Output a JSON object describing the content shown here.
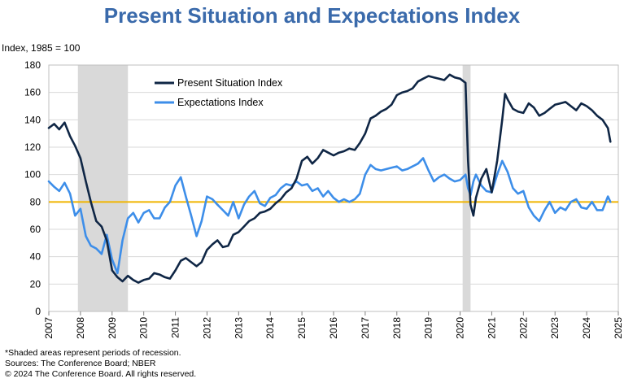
{
  "title": "Present Situation and Expectations Index",
  "unit_label": "Index, 1985 = 100",
  "footnotes": [
    "*Shaded areas represent periods of recession.",
    "Sources: The Conference Board;  NBER",
    "© 2024 The Conference Board. All rights reserved."
  ],
  "colors": {
    "present": "#0f2645",
    "expectations": "#3d8ee9",
    "reference": "#f0b400",
    "recession": "#d9d9d9",
    "title": "#3a6aab"
  },
  "chart_data": {
    "type": "line",
    "title": "Present Situation and Expectations Index",
    "ylabel": "Index, 1985 = 100",
    "xlabel": "",
    "ylim": [
      0,
      180
    ],
    "xlim": [
      2007,
      2025
    ],
    "y_ticks": [
      "0",
      "20",
      "40",
      "60",
      "80",
      "100",
      "120",
      "140",
      "160",
      "180"
    ],
    "x_ticks": [
      "2007",
      "2008",
      "2009",
      "2010",
      "2011",
      "2012",
      "2013",
      "2014",
      "2015",
      "2016",
      "2017",
      "2018",
      "2019",
      "2020",
      "2021",
      "2022",
      "2023",
      "2024",
      "2025"
    ],
    "grid": true,
    "legend": "top-left",
    "recessions": [
      [
        2007.92,
        2009.5
      ],
      [
        2020.08,
        2020.33
      ]
    ],
    "reference_line": 80,
    "series": [
      {
        "name": "Present Situation Index",
        "points": [
          [
            2007.0,
            134
          ],
          [
            2007.17,
            137
          ],
          [
            2007.33,
            133
          ],
          [
            2007.5,
            138
          ],
          [
            2007.67,
            128
          ],
          [
            2007.83,
            121
          ],
          [
            2008.0,
            112
          ],
          [
            2008.17,
            95
          ],
          [
            2008.33,
            80
          ],
          [
            2008.5,
            66
          ],
          [
            2008.67,
            62
          ],
          [
            2008.83,
            52
          ],
          [
            2009.0,
            30
          ],
          [
            2009.17,
            25
          ],
          [
            2009.33,
            22
          ],
          [
            2009.5,
            26
          ],
          [
            2009.67,
            23
          ],
          [
            2009.83,
            21
          ],
          [
            2010.0,
            23
          ],
          [
            2010.17,
            24
          ],
          [
            2010.33,
            28
          ],
          [
            2010.5,
            27
          ],
          [
            2010.67,
            25
          ],
          [
            2010.83,
            24
          ],
          [
            2011.0,
            30
          ],
          [
            2011.17,
            37
          ],
          [
            2011.33,
            39
          ],
          [
            2011.5,
            36
          ],
          [
            2011.67,
            33
          ],
          [
            2011.83,
            36
          ],
          [
            2012.0,
            45
          ],
          [
            2012.17,
            49
          ],
          [
            2012.33,
            52
          ],
          [
            2012.5,
            47
          ],
          [
            2012.67,
            48
          ],
          [
            2012.83,
            56
          ],
          [
            2013.0,
            58
          ],
          [
            2013.17,
            62
          ],
          [
            2013.33,
            66
          ],
          [
            2013.5,
            68
          ],
          [
            2013.67,
            72
          ],
          [
            2013.83,
            73
          ],
          [
            2014.0,
            75
          ],
          [
            2014.17,
            79
          ],
          [
            2014.33,
            82
          ],
          [
            2014.5,
            87
          ],
          [
            2014.67,
            90
          ],
          [
            2014.83,
            97
          ],
          [
            2015.0,
            110
          ],
          [
            2015.17,
            113
          ],
          [
            2015.33,
            108
          ],
          [
            2015.5,
            112
          ],
          [
            2015.67,
            118
          ],
          [
            2015.83,
            116
          ],
          [
            2016.0,
            114
          ],
          [
            2016.17,
            116
          ],
          [
            2016.33,
            117
          ],
          [
            2016.5,
            119
          ],
          [
            2016.67,
            118
          ],
          [
            2016.83,
            123
          ],
          [
            2017.0,
            130
          ],
          [
            2017.17,
            141
          ],
          [
            2017.33,
            143
          ],
          [
            2017.5,
            146
          ],
          [
            2017.67,
            148
          ],
          [
            2017.83,
            151
          ],
          [
            2018.0,
            158
          ],
          [
            2018.17,
            160
          ],
          [
            2018.33,
            161
          ],
          [
            2018.5,
            163
          ],
          [
            2018.67,
            168
          ],
          [
            2018.83,
            170
          ],
          [
            2019.0,
            172
          ],
          [
            2019.17,
            171
          ],
          [
            2019.33,
            170
          ],
          [
            2019.5,
            169
          ],
          [
            2019.67,
            173
          ],
          [
            2019.83,
            171
          ],
          [
            2020.0,
            170
          ],
          [
            2020.17,
            167
          ],
          [
            2020.25,
            110
          ],
          [
            2020.33,
            78
          ],
          [
            2020.42,
            70
          ],
          [
            2020.5,
            83
          ],
          [
            2020.67,
            97
          ],
          [
            2020.83,
            104
          ],
          [
            2021.0,
            87
          ],
          [
            2021.17,
            110
          ],
          [
            2021.33,
            140
          ],
          [
            2021.42,
            159
          ],
          [
            2021.5,
            155
          ],
          [
            2021.67,
            148
          ],
          [
            2021.83,
            146
          ],
          [
            2022.0,
            145
          ],
          [
            2022.17,
            152
          ],
          [
            2022.33,
            149
          ],
          [
            2022.5,
            143
          ],
          [
            2022.67,
            145
          ],
          [
            2022.83,
            148
          ],
          [
            2023.0,
            151
          ],
          [
            2023.17,
            152
          ],
          [
            2023.33,
            153
          ],
          [
            2023.5,
            150
          ],
          [
            2023.67,
            147
          ],
          [
            2023.83,
            152
          ],
          [
            2024.0,
            150
          ],
          [
            2024.17,
            147
          ],
          [
            2024.33,
            143
          ],
          [
            2024.5,
            140
          ],
          [
            2024.67,
            134
          ],
          [
            2024.75,
            124
          ]
        ]
      },
      {
        "name": "Expectations Index",
        "points": [
          [
            2007.0,
            95
          ],
          [
            2007.17,
            91
          ],
          [
            2007.33,
            88
          ],
          [
            2007.5,
            94
          ],
          [
            2007.67,
            86
          ],
          [
            2007.83,
            70
          ],
          [
            2008.0,
            75
          ],
          [
            2008.17,
            55
          ],
          [
            2008.33,
            48
          ],
          [
            2008.5,
            46
          ],
          [
            2008.67,
            42
          ],
          [
            2008.83,
            56
          ],
          [
            2009.0,
            38
          ],
          [
            2009.17,
            28
          ],
          [
            2009.33,
            52
          ],
          [
            2009.5,
            68
          ],
          [
            2009.67,
            72
          ],
          [
            2009.83,
            65
          ],
          [
            2010.0,
            72
          ],
          [
            2010.17,
            74
          ],
          [
            2010.33,
            68
          ],
          [
            2010.5,
            68
          ],
          [
            2010.67,
            76
          ],
          [
            2010.83,
            80
          ],
          [
            2011.0,
            92
          ],
          [
            2011.17,
            98
          ],
          [
            2011.33,
            84
          ],
          [
            2011.5,
            70
          ],
          [
            2011.67,
            55
          ],
          [
            2011.83,
            66
          ],
          [
            2012.0,
            84
          ],
          [
            2012.17,
            82
          ],
          [
            2012.33,
            78
          ],
          [
            2012.5,
            74
          ],
          [
            2012.67,
            70
          ],
          [
            2012.83,
            80
          ],
          [
            2013.0,
            68
          ],
          [
            2013.17,
            78
          ],
          [
            2013.33,
            84
          ],
          [
            2013.5,
            88
          ],
          [
            2013.67,
            79
          ],
          [
            2013.83,
            77
          ],
          [
            2014.0,
            83
          ],
          [
            2014.17,
            85
          ],
          [
            2014.33,
            90
          ],
          [
            2014.5,
            93
          ],
          [
            2014.67,
            92
          ],
          [
            2014.83,
            95
          ],
          [
            2015.0,
            92
          ],
          [
            2015.17,
            93
          ],
          [
            2015.33,
            88
          ],
          [
            2015.5,
            90
          ],
          [
            2015.67,
            84
          ],
          [
            2015.83,
            88
          ],
          [
            2016.0,
            83
          ],
          [
            2016.17,
            80
          ],
          [
            2016.33,
            82
          ],
          [
            2016.5,
            80
          ],
          [
            2016.67,
            82
          ],
          [
            2016.83,
            86
          ],
          [
            2017.0,
            100
          ],
          [
            2017.17,
            107
          ],
          [
            2017.33,
            104
          ],
          [
            2017.5,
            103
          ],
          [
            2017.67,
            104
          ],
          [
            2017.83,
            105
          ],
          [
            2018.0,
            106
          ],
          [
            2018.17,
            103
          ],
          [
            2018.33,
            104
          ],
          [
            2018.5,
            106
          ],
          [
            2018.67,
            108
          ],
          [
            2018.83,
            112
          ],
          [
            2019.0,
            103
          ],
          [
            2019.17,
            95
          ],
          [
            2019.33,
            98
          ],
          [
            2019.5,
            100
          ],
          [
            2019.67,
            97
          ],
          [
            2019.83,
            95
          ],
          [
            2020.0,
            96
          ],
          [
            2020.17,
            100
          ],
          [
            2020.25,
            90
          ],
          [
            2020.33,
            85
          ],
          [
            2020.42,
            95
          ],
          [
            2020.5,
            100
          ],
          [
            2020.67,
            92
          ],
          [
            2020.83,
            88
          ],
          [
            2021.0,
            87
          ],
          [
            2021.17,
            100
          ],
          [
            2021.33,
            110
          ],
          [
            2021.5,
            102
          ],
          [
            2021.67,
            90
          ],
          [
            2021.83,
            86
          ],
          [
            2022.0,
            88
          ],
          [
            2022.17,
            76
          ],
          [
            2022.33,
            70
          ],
          [
            2022.5,
            66
          ],
          [
            2022.67,
            74
          ],
          [
            2022.83,
            80
          ],
          [
            2023.0,
            72
          ],
          [
            2023.17,
            76
          ],
          [
            2023.33,
            74
          ],
          [
            2023.5,
            80
          ],
          [
            2023.67,
            82
          ],
          [
            2023.83,
            76
          ],
          [
            2024.0,
            75
          ],
          [
            2024.17,
            80
          ],
          [
            2024.33,
            74
          ],
          [
            2024.5,
            74
          ],
          [
            2024.67,
            84
          ],
          [
            2024.75,
            80
          ]
        ]
      }
    ]
  }
}
